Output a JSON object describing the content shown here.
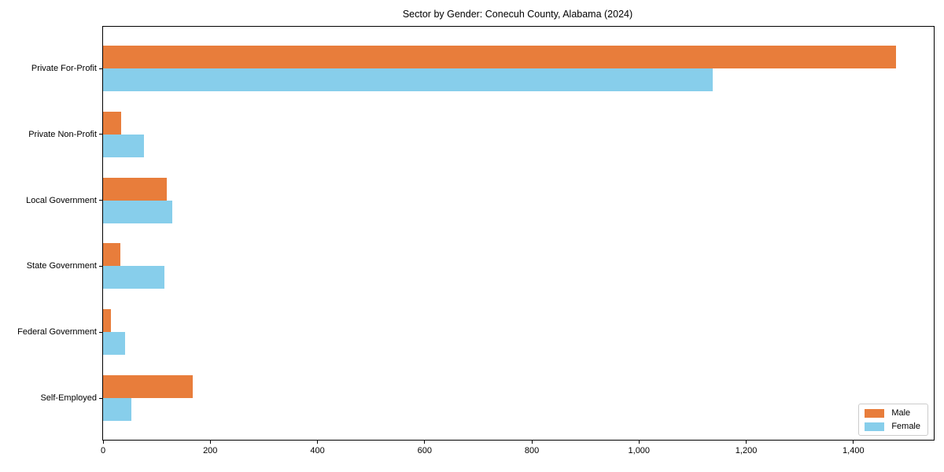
{
  "chart_data": {
    "type": "bar",
    "orientation": "horizontal",
    "title": "Sector by Gender: Conecuh County, Alabama (2024)",
    "xlabel": "",
    "ylabel": "",
    "categories": [
      "Private For-Profit",
      "Private Non-Profit",
      "Local Government",
      "State Government",
      "Federal Government",
      "Self-Employed"
    ],
    "series": [
      {
        "name": "Male",
        "color": "#e87d3b",
        "values": [
          1480,
          34,
          119,
          32,
          15,
          168
        ]
      },
      {
        "name": "Female",
        "color": "#87ceeb",
        "values": [
          1138,
          76,
          129,
          115,
          41,
          53
        ]
      }
    ],
    "xlim": [
      0,
      1550
    ],
    "x_ticks": [
      0,
      200,
      400,
      600,
      800,
      1000,
      1200,
      1400
    ],
    "x_tick_labels": [
      "0",
      "200",
      "400",
      "600",
      "800",
      "1,000",
      "1,200",
      "1,400"
    ],
    "grid": false,
    "legend_position": "lower right"
  }
}
